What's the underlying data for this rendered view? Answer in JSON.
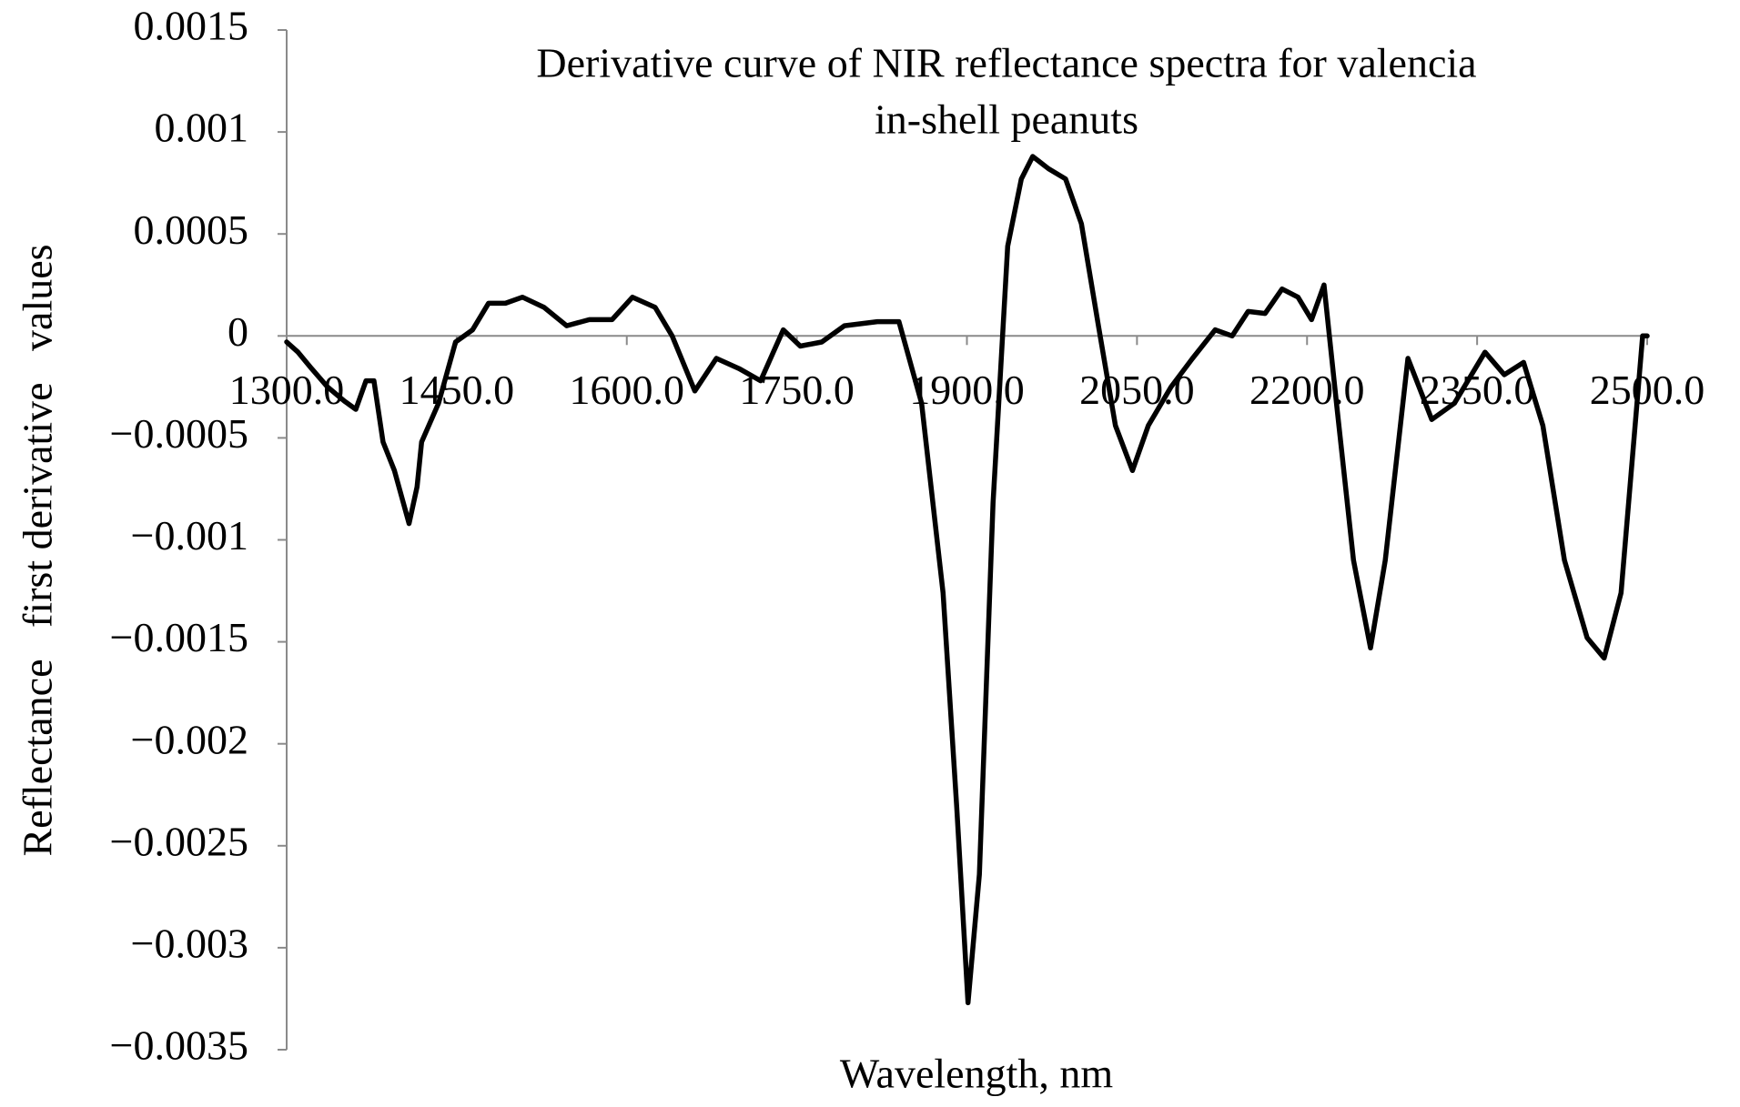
{
  "chart_data": {
    "type": "line",
    "title": [
      "Derivative curve of NIR reflectance spectra for valencia",
      "in-shell peanuts"
    ],
    "xlabel": "Wavelength,   nm",
    "ylabel": "Reflectance   first derivative   values",
    "xlim": [
      1300,
      2500
    ],
    "ylim": [
      -0.0035,
      0.0015
    ],
    "xticks": [
      {
        "value": 1300,
        "label": "1300.0"
      },
      {
        "value": 1450,
        "label": "1450.0"
      },
      {
        "value": 1600,
        "label": "1600.0"
      },
      {
        "value": 1750,
        "label": "1750.0"
      },
      {
        "value": 1900,
        "label": "1900.0"
      },
      {
        "value": 2050,
        "label": "2050.0"
      },
      {
        "value": 2200,
        "label": "2200.0"
      },
      {
        "value": 2350,
        "label": "2350.0"
      },
      {
        "value": 2500,
        "label": "2500.0"
      }
    ],
    "yticks": [
      0.0015,
      0.001,
      0.0005,
      0,
      {
        "value": -0.0005,
        "label": "−0.0005"
      },
      {
        "value": -0.001,
        "label": "−0.001"
      },
      {
        "value": -0.0015,
        "label": "−0.0015"
      },
      {
        "value": -0.002,
        "label": "−0.002"
      },
      {
        "value": -0.0025,
        "label": "−0.0025"
      },
      {
        "value": -0.003,
        "label": "−0.003"
      },
      {
        "value": -0.0035,
        "label": "−0.0035"
      }
    ],
    "x": [
      1300,
      1310,
      1322,
      1336,
      1351,
      1361,
      1370,
      1377,
      1385,
      1395,
      1408,
      1415,
      1419,
      1434,
      1449,
      1464,
      1478,
      1493,
      1508,
      1527,
      1547,
      1567,
      1587,
      1605,
      1625,
      1640,
      1660,
      1679,
      1699,
      1718,
      1738,
      1753,
      1772,
      1792,
      1821,
      1840,
      1860,
      1879,
      1891,
      1901,
      1911,
      1923,
      1936,
      1948,
      1958,
      1972,
      1987,
      2001,
      2016,
      2031,
      2046,
      2060,
      2080,
      2099,
      2119,
      2134,
      2148,
      2163,
      2178,
      2192,
      2204,
      2215,
      2226,
      2241,
      2256,
      2269,
      2289,
      2310,
      2330,
      2357,
      2374,
      2391,
      2408,
      2427,
      2447,
      2462,
      2477,
      2491,
      2496,
      2500
    ],
    "series": [
      {
        "color": "#000000",
        "values": [
          -3e-05,
          -8e-05,
          -0.00016,
          -0.00025,
          -0.00032,
          -0.00036,
          -0.00022,
          -0.00022,
          -0.00052,
          -0.00066,
          -0.00092,
          -0.00074,
          -0.00052,
          -0.00033,
          -3e-05,
          3e-05,
          0.00016,
          0.00016,
          0.00019,
          0.00014,
          5e-05,
          8e-05,
          8e-05,
          0.00019,
          0.00014,
          0,
          -0.00027,
          -0.00011,
          -0.00016,
          -0.00022,
          3e-05,
          -5e-05,
          -3e-05,
          5e-05,
          7e-05,
          7e-05,
          -0.00033,
          -0.00126,
          -0.00231,
          -0.00327,
          -0.00264,
          -0.00082,
          0.00044,
          0.00077,
          0.00088,
          0.00082,
          0.00077,
          0.00055,
          5e-05,
          -0.00044,
          -0.00066,
          -0.00044,
          -0.00025,
          -0.00011,
          3e-05,
          0,
          0.00012,
          0.00011,
          0.00023,
          0.00019,
          8e-05,
          0.00025,
          -0.00033,
          -0.0011,
          -0.00153,
          -0.0011,
          -0.00011,
          -0.00041,
          -0.00033,
          -8e-05,
          -0.00019,
          -0.00013,
          -0.00044,
          -0.0011,
          -0.00148,
          -0.00158,
          -0.00126,
          -0.00033,
          0,
          0
        ]
      }
    ]
  }
}
